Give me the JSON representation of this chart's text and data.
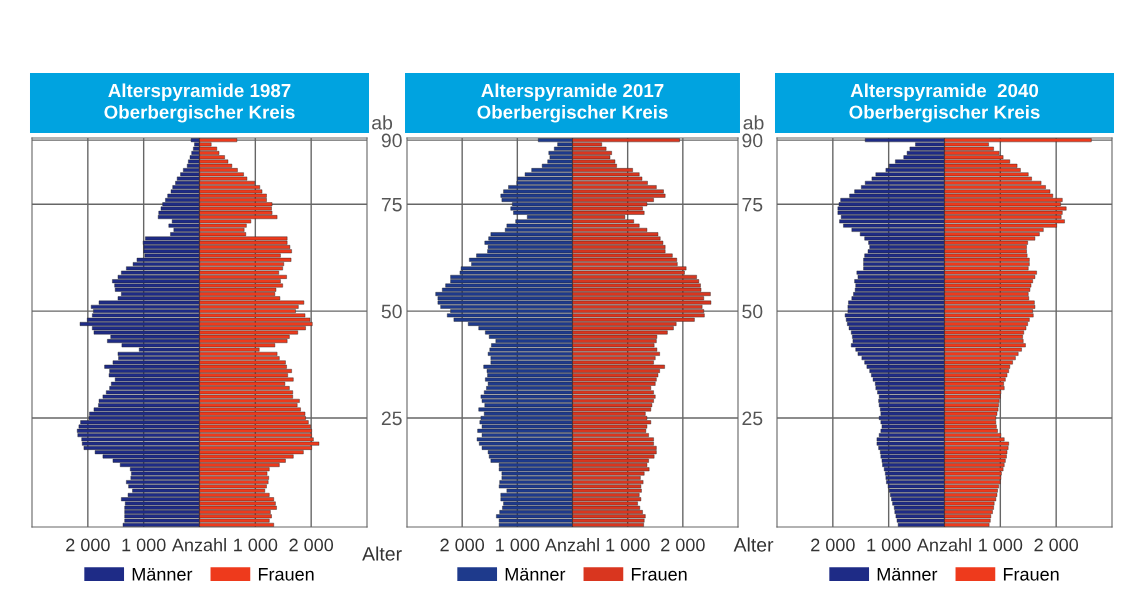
{
  "chart_data": [
    {
      "type": "bar",
      "orientation": "horizontal",
      "title": "Alterspyramide 1987\nOberbergischer Kreis",
      "stacked": true,
      "ylabel": "Alter",
      "annotations": [
        "ab"
      ],
      "categories": [
        "90",
        null,
        null,
        null,
        null,
        null,
        null,
        null,
        null,
        null,
        null,
        null,
        null,
        null,
        null,
        "75",
        null,
        null,
        null,
        null,
        null,
        null,
        null,
        null,
        null,
        null,
        null,
        null,
        null,
        null,
        null,
        null,
        null,
        null,
        null,
        null,
        null,
        null,
        null,
        null,
        "50",
        null,
        null,
        null,
        null,
        null,
        null,
        null,
        null,
        null,
        null,
        null,
        null,
        null,
        null,
        null,
        null,
        null,
        null,
        null,
        null,
        null,
        null,
        null,
        null,
        "25",
        null,
        null,
        null,
        null,
        null,
        null,
        null,
        null,
        null,
        null,
        null,
        null,
        null,
        null,
        null,
        null,
        null,
        null,
        null,
        null,
        null,
        null,
        null,
        null,
        null
      ],
      "xlim": [
        -3000,
        3000
      ],
      "xticks": [
        {
          "value": -2000,
          "label": "2 000"
        },
        {
          "value": -1000,
          "label": "1 000"
        },
        {
          "value": 0,
          "label": "Anzahl"
        },
        {
          "value": 1000,
          "label": "1 000"
        },
        {
          "value": 2000,
          "label": "2 000"
        }
      ],
      "grid": true,
      "legend": "bottom",
      "series": [
        {
          "name": "Männer",
          "color": "#1e2b86",
          "values": [
            -150,
            -90,
            -110,
            -140,
            -170,
            -200,
            -220,
            -290,
            -340,
            -400,
            -430,
            -480,
            -510,
            -570,
            -610,
            -660,
            -690,
            -730,
            -740,
            -490,
            -550,
            -460,
            -520,
            -970,
            -1010,
            -1000,
            -1000,
            -980,
            -1120,
            -1190,
            -1310,
            -1400,
            -1460,
            -1560,
            -1520,
            -1510,
            -1400,
            -1460,
            -1800,
            -1940,
            -1900,
            -1920,
            -2010,
            -2140,
            -1920,
            -1890,
            -1590,
            -1650,
            -1390,
            -1080,
            -1460,
            -1450,
            -1550,
            -1700,
            -1610,
            -1620,
            -1510,
            -1580,
            -1610,
            -1670,
            -1730,
            -1800,
            -1810,
            -1890,
            -1970,
            -1980,
            -2130,
            -2160,
            -2190,
            -2180,
            -2110,
            -2100,
            -2070,
            -1870,
            -1730,
            -1550,
            -1420,
            -1240,
            -1220,
            -1230,
            -1310,
            -1270,
            -1200,
            -1280,
            -1400,
            -1330,
            -1340,
            -1340,
            -1340,
            -1340,
            -1370
          ]
        },
        {
          "name": "Frauen",
          "color": "#ee3a1c",
          "values": [
            670,
            210,
            310,
            350,
            450,
            510,
            580,
            680,
            790,
            850,
            990,
            1080,
            1120,
            1200,
            1200,
            1300,
            1290,
            1300,
            1390,
            920,
            840,
            800,
            830,
            1570,
            1570,
            1620,
            1650,
            1450,
            1640,
            1510,
            1490,
            1420,
            1560,
            1450,
            1490,
            1370,
            1350,
            1440,
            1870,
            1770,
            1720,
            1890,
            1980,
            2020,
            1900,
            1760,
            1610,
            1570,
            1350,
            1070,
            1390,
            1430,
            1540,
            1560,
            1650,
            1580,
            1680,
            1530,
            1610,
            1670,
            1670,
            1790,
            1750,
            1810,
            1890,
            1900,
            1950,
            1990,
            2010,
            2010,
            2040,
            2140,
            2010,
            1860,
            1680,
            1540,
            1430,
            1250,
            1210,
            1240,
            1230,
            1200,
            1170,
            1250,
            1330,
            1360,
            1380,
            1270,
            1290,
            1250,
            1330
          ]
        }
      ]
    },
    {
      "type": "bar",
      "orientation": "horizontal",
      "title": "Alterspyramide 2017\nOberbergischer Kreis",
      "stacked": true,
      "tick_labels": "x",
      "categories": [
        "90",
        null,
        null,
        null,
        null,
        null,
        null,
        null,
        null,
        null,
        null,
        null,
        null,
        null,
        null,
        "75",
        null,
        null,
        null,
        null,
        null,
        null,
        null,
        null,
        null,
        null,
        null,
        null,
        null,
        null,
        null,
        null,
        null,
        null,
        null,
        null,
        null,
        null,
        null,
        null,
        "50",
        null,
        null,
        null,
        null,
        null,
        null,
        null,
        null,
        null,
        null,
        null,
        null,
        null,
        null,
        null,
        null,
        null,
        null,
        null,
        null,
        null,
        null,
        null,
        null,
        "25",
        null,
        null,
        null,
        null,
        null,
        null,
        null,
        null,
        null,
        null,
        null,
        null,
        null,
        null,
        null,
        null,
        null,
        null,
        null,
        null,
        null,
        null,
        null,
        null,
        null
      ],
      "xlim": [
        -3000,
        3000
      ],
      "xticks": [
        {
          "value": -2000,
          "label": "2 000"
        },
        {
          "value": -1000,
          "label": "1 000"
        },
        {
          "value": 0,
          "label": "Anzahl"
        },
        {
          "value": 1000,
          "label": "1 000"
        },
        {
          "value": 2000,
          "label": "2 000"
        }
      ],
      "grid": true,
      "legend": "bottom",
      "series": [
        {
          "name": "Männer",
          "color": "#1e3a8c",
          "values": [
            -620,
            -270,
            -330,
            -430,
            -410,
            -450,
            -550,
            -740,
            -860,
            -1000,
            -1010,
            -1160,
            -1250,
            -1300,
            -1280,
            -1090,
            -1120,
            -1070,
            -820,
            -1030,
            -1190,
            -1220,
            -1480,
            -1520,
            -1590,
            -1530,
            -1540,
            -1740,
            -1870,
            -1830,
            -2020,
            -2040,
            -2210,
            -2210,
            -2300,
            -2360,
            -2480,
            -2440,
            -2440,
            -2390,
            -2210,
            -2270,
            -2150,
            -1890,
            -1700,
            -1580,
            -1510,
            -1390,
            -1470,
            -1500,
            -1530,
            -1480,
            -1480,
            -1610,
            -1550,
            -1540,
            -1580,
            -1530,
            -1560,
            -1600,
            -1660,
            -1640,
            -1590,
            -1700,
            -1600,
            -1660,
            -1680,
            -1640,
            -1720,
            -1640,
            -1730,
            -1690,
            -1640,
            -1530,
            -1510,
            -1480,
            -1330,
            -1330,
            -1280,
            -1280,
            -1320,
            -1330,
            -1190,
            -1300,
            -1300,
            -1250,
            -1270,
            -1320,
            -1380,
            -1330,
            -1330
          ]
        },
        {
          "name": "Frauen",
          "color": "#d9361f",
          "values": [
            1940,
            530,
            610,
            710,
            680,
            770,
            800,
            1090,
            1210,
            1260,
            1360,
            1520,
            1650,
            1680,
            1470,
            1350,
            1270,
            1300,
            950,
            1110,
            1210,
            1350,
            1550,
            1590,
            1640,
            1680,
            1680,
            1810,
            1890,
            1900,
            2060,
            2030,
            2250,
            2290,
            2320,
            2330,
            2500,
            2380,
            2510,
            2350,
            2380,
            2390,
            2210,
            1880,
            1830,
            1720,
            1530,
            1520,
            1480,
            1530,
            1580,
            1500,
            1470,
            1670,
            1580,
            1550,
            1520,
            1500,
            1420,
            1470,
            1500,
            1470,
            1440,
            1420,
            1320,
            1350,
            1420,
            1350,
            1330,
            1380,
            1470,
            1470,
            1520,
            1520,
            1480,
            1380,
            1350,
            1390,
            1300,
            1230,
            1280,
            1240,
            1250,
            1210,
            1240,
            1180,
            1220,
            1270,
            1320,
            1300,
            1290
          ]
        }
      ]
    },
    {
      "type": "bar",
      "orientation": "horizontal",
      "title": "Alterspyramide  2040\nOberbergischer Kreis",
      "stacked": true,
      "ylabel": "Alter",
      "annotations": [
        "ab"
      ],
      "categories": [
        "90",
        null,
        null,
        null,
        null,
        null,
        null,
        null,
        null,
        null,
        null,
        null,
        null,
        null,
        null,
        "75",
        null,
        null,
        null,
        null,
        null,
        null,
        null,
        null,
        null,
        null,
        null,
        null,
        null,
        null,
        null,
        null,
        null,
        null,
        null,
        null,
        null,
        null,
        null,
        null,
        "50",
        null,
        null,
        null,
        null,
        null,
        null,
        null,
        null,
        null,
        null,
        null,
        null,
        null,
        null,
        null,
        null,
        null,
        null,
        null,
        null,
        null,
        null,
        null,
        null,
        "25",
        null,
        null,
        null,
        null,
        null,
        null,
        null,
        null,
        null,
        null,
        null,
        null,
        null,
        null,
        null,
        null,
        null,
        null,
        null,
        null,
        null,
        null,
        null,
        null,
        null
      ],
      "xlim": [
        -3000,
        3000
      ],
      "xticks": [
        {
          "value": -2000,
          "label": "2 000"
        },
        {
          "value": -1000,
          "label": "1 000"
        },
        {
          "value": 0,
          "label": "Anzahl"
        },
        {
          "value": 1000,
          "label": "1 000"
        },
        {
          "value": 2000,
          "label": "2 000"
        }
      ],
      "grid": true,
      "legend": "bottom",
      "series": [
        {
          "name": "Männer",
          "color": "#1e2b86",
          "values": [
            -1420,
            -520,
            -620,
            -670,
            -730,
            -880,
            -990,
            -1050,
            -1230,
            -1300,
            -1420,
            -1490,
            -1610,
            -1700,
            -1860,
            -1890,
            -1910,
            -1910,
            -1850,
            -1880,
            -1810,
            -1660,
            -1510,
            -1430,
            -1360,
            -1340,
            -1370,
            -1430,
            -1450,
            -1450,
            -1450,
            -1570,
            -1550,
            -1610,
            -1590,
            -1600,
            -1630,
            -1660,
            -1720,
            -1730,
            -1730,
            -1780,
            -1760,
            -1740,
            -1710,
            -1670,
            -1650,
            -1640,
            -1670,
            -1590,
            -1550,
            -1480,
            -1430,
            -1390,
            -1340,
            -1310,
            -1280,
            -1240,
            -1230,
            -1200,
            -1170,
            -1180,
            -1170,
            -1150,
            -1140,
            -1170,
            -1140,
            -1120,
            -1140,
            -1170,
            -1210,
            -1210,
            -1180,
            -1150,
            -1140,
            -1120,
            -1110,
            -1080,
            -1060,
            -1050,
            -1040,
            -1010,
            -990,
            -970,
            -950,
            -930,
            -900,
            -890,
            -870,
            -850,
            -830
          ]
        },
        {
          "name": "Frauen",
          "color": "#ee3a1c",
          "values": [
            2630,
            790,
            880,
            980,
            1050,
            1170,
            1300,
            1360,
            1500,
            1560,
            1730,
            1810,
            1890,
            1940,
            2110,
            2080,
            2180,
            2110,
            2090,
            2150,
            2010,
            1770,
            1700,
            1620,
            1490,
            1470,
            1470,
            1480,
            1520,
            1520,
            1500,
            1650,
            1620,
            1580,
            1550,
            1530,
            1500,
            1510,
            1610,
            1620,
            1580,
            1590,
            1520,
            1490,
            1460,
            1420,
            1400,
            1410,
            1450,
            1380,
            1320,
            1270,
            1220,
            1170,
            1150,
            1120,
            1090,
            1060,
            1070,
            1010,
            1000,
            980,
            970,
            960,
            940,
            920,
            920,
            930,
            950,
            1010,
            1070,
            1150,
            1140,
            1120,
            1110,
            1090,
            1070,
            1050,
            1020,
            1010,
            1000,
            970,
            950,
            940,
            920,
            890,
            880,
            860,
            830,
            820,
            800
          ]
        }
      ]
    }
  ]
}
